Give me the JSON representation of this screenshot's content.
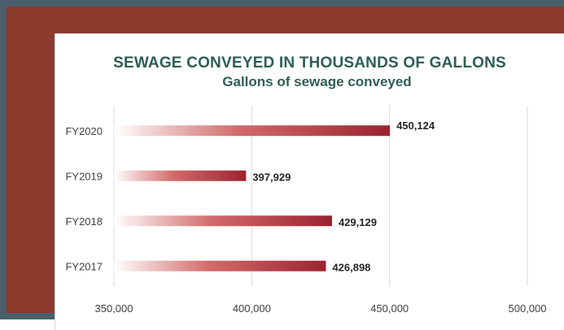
{
  "chart_data": {
    "type": "bar",
    "orientation": "horizontal",
    "title": "SEWAGE CONVEYED IN THOUSANDS OF GALLONS",
    "subtitle": "Gallons of sewage conveyed",
    "categories": [
      "FY2020",
      "FY2019",
      "FY2018",
      "FY2017"
    ],
    "values": [
      450124,
      397929,
      429129,
      426898
    ],
    "data_labels": [
      "450,124",
      "397,929",
      "429,129",
      "426,898"
    ],
    "x_ticks": [
      350000,
      400000,
      450000,
      500000
    ],
    "x_tick_labels": [
      "350,000",
      "400,000",
      "450,000",
      "500,000"
    ],
    "xlim": [
      350000,
      500000
    ],
    "xlabel": "",
    "ylabel": "",
    "grid": true,
    "legend": "none",
    "colors": {
      "bar_start": "#ffffff",
      "bar_mid": "#d26a6a",
      "bar_end": "#9b2330",
      "gridline": "#d9d9d9",
      "title": "#2e5e55",
      "frame_outer": "#4a5f6b",
      "frame_inner": "#8b3a2b"
    }
  }
}
